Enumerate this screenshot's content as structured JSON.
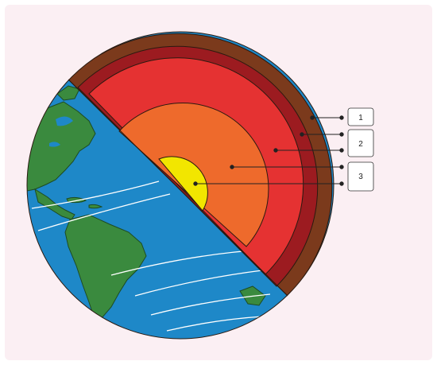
{
  "diagram": {
    "labels": [
      {
        "id": "1",
        "text": "1"
      },
      {
        "id": "2",
        "text": "2"
      },
      {
        "id": "3",
        "text": "3"
      }
    ],
    "layers": [
      "crust",
      "upper-mantle",
      "lower-mantle",
      "outer-core",
      "inner-core"
    ],
    "colors": {
      "background": "#fbeff3",
      "ocean": "#1e88c8",
      "land": "#3a8a3e",
      "crust": "#7b3a1c",
      "upper_mantle": "#9c1b20",
      "lower_mantle": "#e53232",
      "outer_core": "#ee6a2c",
      "inner_core": "#f2e600",
      "outline": "#2a1a10",
      "callout_box": "#ffffff"
    }
  }
}
